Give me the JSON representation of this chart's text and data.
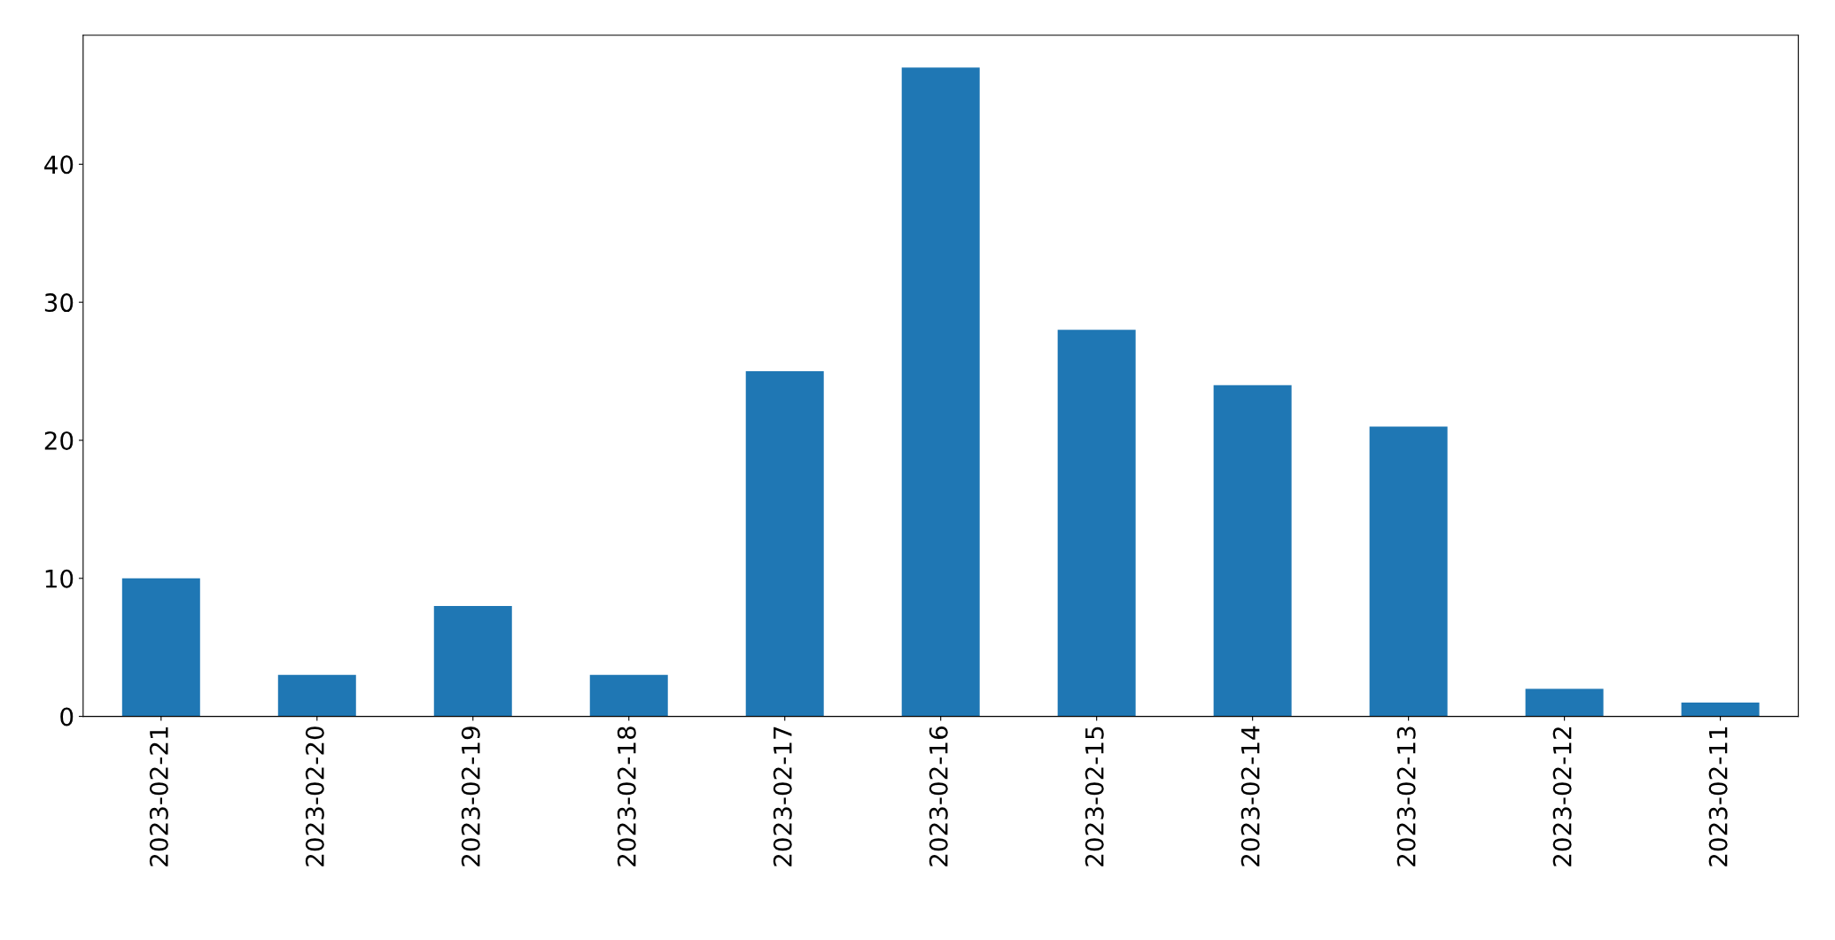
{
  "chart_data": {
    "type": "bar",
    "categories": [
      "2023-02-21",
      "2023-02-20",
      "2023-02-19",
      "2023-02-18",
      "2023-02-17",
      "2023-02-16",
      "2023-02-15",
      "2023-02-14",
      "2023-02-13",
      "2023-02-12",
      "2023-02-11"
    ],
    "values": [
      10,
      3,
      8,
      3,
      25,
      47,
      28,
      24,
      21,
      2,
      1
    ],
    "color": "#1f77b4",
    "ylim": [
      0,
      49.35
    ],
    "yticks": [
      0,
      10,
      20,
      30,
      40
    ],
    "grid": false,
    "legend": false
  }
}
